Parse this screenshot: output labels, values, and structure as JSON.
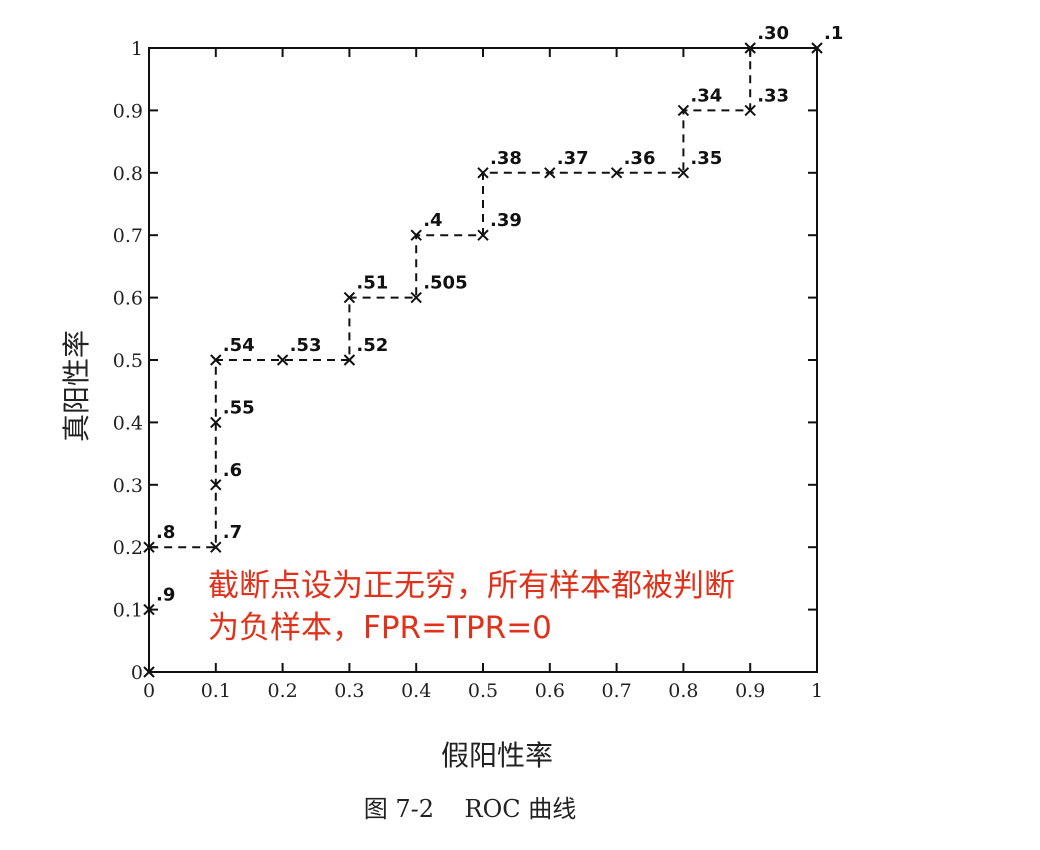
{
  "chart_data": {
    "type": "line",
    "title": "",
    "xlabel": "假阳性率",
    "ylabel": "真阳性率",
    "caption": "图 7-2    ROC 曲线",
    "xlim": [
      0,
      1
    ],
    "ylim": [
      0,
      1
    ],
    "x_ticks": [
      "0",
      "0.1",
      "0.2",
      "0.3",
      "0.4",
      "0.5",
      "0.6",
      "0.7",
      "0.8",
      "0.9",
      "1"
    ],
    "y_ticks": [
      "0",
      "0.1",
      "0.2",
      "0.3",
      "0.4",
      "0.5",
      "0.6",
      "0.7",
      "0.8",
      "0.9",
      "1"
    ],
    "grid": false,
    "series": [
      {
        "points": [
          {
            "x": 0,
            "y": 0,
            "label": ""
          },
          {
            "x": 0,
            "y": 0.1,
            "label": ".9"
          },
          {
            "x": 0,
            "y": 0.2,
            "label": ".8"
          },
          {
            "x": 0.1,
            "y": 0.2,
            "label": ".7"
          },
          {
            "x": 0.1,
            "y": 0.3,
            "label": ".6"
          },
          {
            "x": 0.1,
            "y": 0.4,
            "label": ".55"
          },
          {
            "x": 0.1,
            "y": 0.5,
            "label": ".54"
          },
          {
            "x": 0.2,
            "y": 0.5,
            "label": ".53"
          },
          {
            "x": 0.3,
            "y": 0.5,
            "label": ".52"
          },
          {
            "x": 0.3,
            "y": 0.6,
            "label": ".51"
          },
          {
            "x": 0.4,
            "y": 0.6,
            "label": ".505"
          },
          {
            "x": 0.4,
            "y": 0.7,
            "label": ".4"
          },
          {
            "x": 0.5,
            "y": 0.7,
            "label": ".39"
          },
          {
            "x": 0.5,
            "y": 0.8,
            "label": ".38"
          },
          {
            "x": 0.6,
            "y": 0.8,
            "label": ".37"
          },
          {
            "x": 0.7,
            "y": 0.8,
            "label": ".36"
          },
          {
            "x": 0.8,
            "y": 0.8,
            "label": ".35"
          },
          {
            "x": 0.8,
            "y": 0.9,
            "label": ".34"
          },
          {
            "x": 0.9,
            "y": 0.9,
            "label": ".33"
          },
          {
            "x": 0.9,
            "y": 1.0,
            "label": ".30"
          },
          {
            "x": 1.0,
            "y": 1.0,
            "label": ".1"
          }
        ]
      }
    ],
    "annotation": {
      "color": "#e0311a",
      "lines": [
        "截断点设为正无穷，所有样本都被判断",
        "为负样本，FPR=TPR=0"
      ]
    }
  }
}
